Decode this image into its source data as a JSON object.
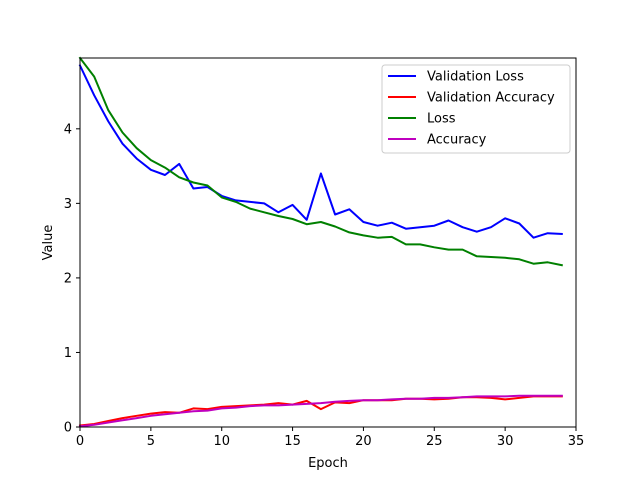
{
  "chart_data": {
    "type": "line",
    "title": "",
    "xlabel": "Epoch",
    "ylabel": "Value",
    "xlim": [
      0,
      35
    ],
    "ylim": [
      0,
      4.95
    ],
    "xticks": [
      0,
      5,
      10,
      15,
      20,
      25,
      30,
      35
    ],
    "yticks": [
      0,
      1,
      2,
      3,
      4
    ],
    "grid": false,
    "legend_position": "top-right",
    "x": [
      0,
      1,
      2,
      3,
      4,
      5,
      6,
      7,
      8,
      9,
      10,
      11,
      12,
      13,
      14,
      15,
      16,
      17,
      18,
      19,
      20,
      21,
      22,
      23,
      24,
      25,
      26,
      27,
      28,
      29,
      30,
      31,
      32,
      33,
      34
    ],
    "series": [
      {
        "name": "Validation Loss",
        "color": "#0000ff",
        "values": [
          4.85,
          4.45,
          4.1,
          3.8,
          3.6,
          3.45,
          3.38,
          3.53,
          3.2,
          3.22,
          3.1,
          3.04,
          3.02,
          3.0,
          2.88,
          2.98,
          2.78,
          3.4,
          2.85,
          2.92,
          2.75,
          2.7,
          2.74,
          2.66,
          2.68,
          2.7,
          2.77,
          2.68,
          2.62,
          2.68,
          2.8,
          2.73,
          2.54,
          2.6,
          2.59
        ]
      },
      {
        "name": "Validation Accuracy",
        "color": "#ff0000",
        "values": [
          0.02,
          0.04,
          0.08,
          0.12,
          0.15,
          0.18,
          0.2,
          0.19,
          0.25,
          0.24,
          0.27,
          0.28,
          0.29,
          0.3,
          0.32,
          0.3,
          0.35,
          0.24,
          0.33,
          0.32,
          0.36,
          0.36,
          0.36,
          0.38,
          0.38,
          0.37,
          0.38,
          0.4,
          0.4,
          0.39,
          0.37,
          0.39,
          0.41,
          0.41,
          0.41
        ]
      },
      {
        "name": "Loss",
        "color": "#008000",
        "values": [
          4.95,
          4.7,
          4.25,
          3.95,
          3.74,
          3.58,
          3.48,
          3.35,
          3.28,
          3.24,
          3.08,
          3.02,
          2.93,
          2.88,
          2.83,
          2.79,
          2.72,
          2.75,
          2.69,
          2.61,
          2.57,
          2.54,
          2.55,
          2.45,
          2.45,
          2.41,
          2.38,
          2.38,
          2.29,
          2.28,
          2.27,
          2.25,
          2.19,
          2.21,
          2.17
        ]
      },
      {
        "name": "Accuracy",
        "color": "#bf00bf",
        "values": [
          0.01,
          0.03,
          0.06,
          0.09,
          0.12,
          0.15,
          0.17,
          0.19,
          0.21,
          0.22,
          0.25,
          0.26,
          0.28,
          0.29,
          0.29,
          0.3,
          0.31,
          0.32,
          0.34,
          0.35,
          0.36,
          0.36,
          0.37,
          0.38,
          0.38,
          0.39,
          0.39,
          0.4,
          0.41,
          0.41,
          0.41,
          0.42,
          0.42,
          0.42,
          0.42
        ]
      }
    ]
  }
}
